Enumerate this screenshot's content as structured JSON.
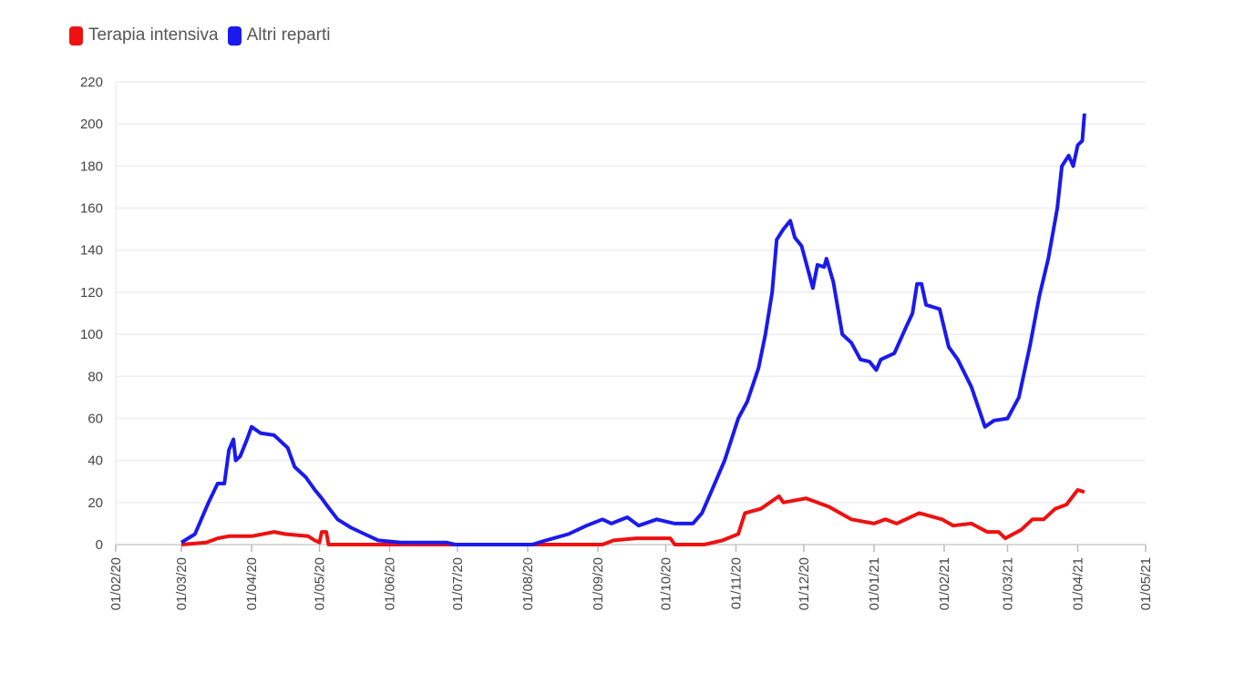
{
  "chart_data": {
    "type": "line",
    "title": "",
    "xlabel": "",
    "ylabel": "",
    "ylim": [
      0,
      220
    ],
    "yticks": [
      "0",
      "20",
      "40",
      "60",
      "80",
      "100",
      "120",
      "140",
      "160",
      "180",
      "200",
      "220"
    ],
    "grid": true,
    "legend_position": "top-left",
    "x_origin": "2020-02-01",
    "x_unit": "days since 01/02/20",
    "xticks": [
      {
        "label": "01/02/20",
        "day": 0
      },
      {
        "label": "01/03/20",
        "day": 29
      },
      {
        "label": "01/04/20",
        "day": 60
      },
      {
        "label": "01/05/20",
        "day": 90
      },
      {
        "label": "01/06/20",
        "day": 121
      },
      {
        "label": "01/07/20",
        "day": 151
      },
      {
        "label": "01/08/20",
        "day": 182
      },
      {
        "label": "01/09/20",
        "day": 213
      },
      {
        "label": "01/10/20",
        "day": 243
      },
      {
        "label": "01/11/20",
        "day": 274
      },
      {
        "label": "01/12/20",
        "day": 304
      },
      {
        "label": "01/01/21",
        "day": 335
      },
      {
        "label": "01/02/21",
        "day": 366
      },
      {
        "label": "01/03/21",
        "day": 394
      },
      {
        "label": "01/04/21",
        "day": 425
      },
      {
        "label": "01/05/21",
        "day": 455
      }
    ],
    "series": [
      {
        "name": "Terapia intensiva",
        "color": "#ee1111",
        "points": [
          [
            29,
            0
          ],
          [
            40,
            1
          ],
          [
            45,
            3
          ],
          [
            50,
            4
          ],
          [
            60,
            4
          ],
          [
            70,
            6
          ],
          [
            75,
            5
          ],
          [
            85,
            4
          ],
          [
            88,
            2
          ],
          [
            90,
            1
          ],
          [
            91,
            6
          ],
          [
            93,
            6
          ],
          [
            94,
            0
          ],
          [
            150,
            0
          ],
          [
            215,
            0
          ],
          [
            220,
            2
          ],
          [
            230,
            3
          ],
          [
            245,
            3
          ],
          [
            247,
            0
          ],
          [
            260,
            0
          ],
          [
            268,
            2
          ],
          [
            275,
            5
          ],
          [
            278,
            15
          ],
          [
            285,
            17
          ],
          [
            293,
            23
          ],
          [
            295,
            20
          ],
          [
            305,
            22
          ],
          [
            315,
            18
          ],
          [
            325,
            12
          ],
          [
            335,
            10
          ],
          [
            340,
            12
          ],
          [
            345,
            10
          ],
          [
            355,
            15
          ],
          [
            365,
            12
          ],
          [
            370,
            9
          ],
          [
            378,
            10
          ],
          [
            385,
            6
          ],
          [
            390,
            6
          ],
          [
            393,
            3
          ],
          [
            400,
            7
          ],
          [
            405,
            12
          ],
          [
            410,
            12
          ],
          [
            415,
            17
          ],
          [
            420,
            19
          ],
          [
            425,
            26
          ],
          [
            428,
            25
          ]
        ]
      },
      {
        "name": "Altri reparti",
        "color": "#1a1aee",
        "points": [
          [
            29,
            1
          ],
          [
            35,
            5
          ],
          [
            41,
            20
          ],
          [
            45,
            29
          ],
          [
            48,
            29
          ],
          [
            50,
            45
          ],
          [
            52,
            50
          ],
          [
            53,
            40
          ],
          [
            55,
            42
          ],
          [
            58,
            50
          ],
          [
            60,
            56
          ],
          [
            64,
            53
          ],
          [
            70,
            52
          ],
          [
            76,
            46
          ],
          [
            79,
            37
          ],
          [
            84,
            32
          ],
          [
            88,
            26
          ],
          [
            91,
            22
          ],
          [
            93,
            19
          ],
          [
            98,
            12
          ],
          [
            104,
            8
          ],
          [
            110,
            5
          ],
          [
            116,
            2
          ],
          [
            126,
            1
          ],
          [
            146,
            1
          ],
          [
            150,
            0
          ],
          [
            184,
            0
          ],
          [
            190,
            2
          ],
          [
            200,
            5
          ],
          [
            208,
            9
          ],
          [
            215,
            12
          ],
          [
            219,
            10
          ],
          [
            226,
            13
          ],
          [
            231,
            9
          ],
          [
            239,
            12
          ],
          [
            247,
            10
          ],
          [
            255,
            10
          ],
          [
            259,
            15
          ],
          [
            263,
            25
          ],
          [
            269,
            40
          ],
          [
            275,
            60
          ],
          [
            279,
            68
          ],
          [
            284,
            84
          ],
          [
            287,
            100
          ],
          [
            290,
            120
          ],
          [
            292,
            145
          ],
          [
            295,
            150
          ],
          [
            298,
            154
          ],
          [
            300,
            146
          ],
          [
            303,
            142
          ],
          [
            305,
            134
          ],
          [
            308,
            122
          ],
          [
            310,
            133
          ],
          [
            313,
            132
          ],
          [
            314,
            136
          ],
          [
            317,
            125
          ],
          [
            321,
            100
          ],
          [
            325,
            96
          ],
          [
            329,
            88
          ],
          [
            333,
            87
          ],
          [
            336,
            83
          ],
          [
            338,
            88
          ],
          [
            344,
            91
          ],
          [
            349,
            103
          ],
          [
            352,
            110
          ],
          [
            354,
            124
          ],
          [
            356,
            124
          ],
          [
            358,
            114
          ],
          [
            364,
            112
          ],
          [
            368,
            94
          ],
          [
            372,
            88
          ],
          [
            378,
            75
          ],
          [
            384,
            56
          ],
          [
            388,
            59
          ],
          [
            394,
            60
          ],
          [
            399,
            70
          ],
          [
            404,
            95
          ],
          [
            408,
            118
          ],
          [
            412,
            136
          ],
          [
            416,
            160
          ],
          [
            418,
            180
          ],
          [
            421,
            185
          ],
          [
            423,
            180
          ],
          [
            425,
            190
          ],
          [
            427,
            192
          ],
          [
            428,
            205
          ]
        ]
      }
    ]
  }
}
